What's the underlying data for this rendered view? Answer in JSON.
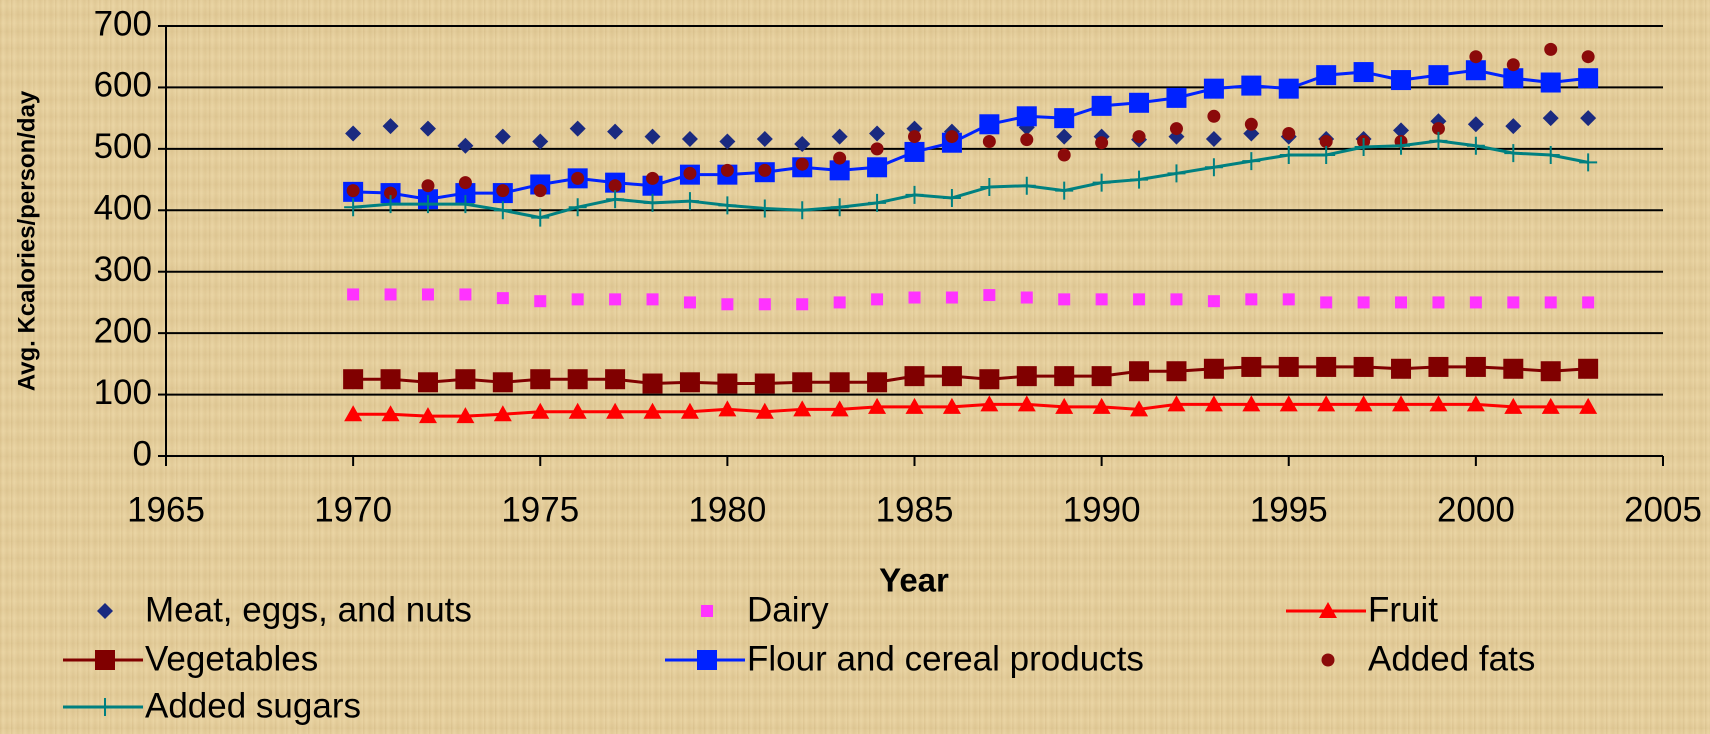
{
  "chart_data": {
    "type": "line",
    "x_label": "Year",
    "y_label": "Avg. Kcalories/person/day",
    "x": [
      1970,
      1971,
      1972,
      1973,
      1974,
      1975,
      1976,
      1977,
      1978,
      1979,
      1980,
      1981,
      1982,
      1983,
      1984,
      1985,
      1986,
      1987,
      1988,
      1989,
      1990,
      1991,
      1992,
      1993,
      1994,
      1995,
      1996,
      1997,
      1998,
      1999,
      2000,
      2001,
      2002,
      2003
    ],
    "xlim": [
      1965,
      2005
    ],
    "xticks": [
      1965,
      1970,
      1975,
      1980,
      1985,
      1990,
      1995,
      2000,
      2005
    ],
    "ylim": [
      0,
      700
    ],
    "yticks": [
      0,
      100,
      200,
      300,
      400,
      500,
      600,
      700
    ],
    "grid": true,
    "series": [
      {
        "name": "Meat, eggs, and nuts",
        "color": "#1a2a80",
        "marker": "diamond",
        "line": false,
        "values": [
          525,
          537,
          533,
          505,
          520,
          512,
          533,
          528,
          520,
          516,
          512,
          516,
          508,
          520,
          525,
          533,
          528,
          540,
          535,
          520,
          520,
          515,
          520,
          516,
          525,
          520,
          516,
          516,
          530,
          545,
          540,
          537,
          550,
          550
        ]
      },
      {
        "name": "Dairy",
        "color": "#ff33ff",
        "marker": "square-small",
        "line": false,
        "values": [
          263,
          263,
          263,
          263,
          257,
          252,
          255,
          255,
          255,
          250,
          247,
          247,
          247,
          250,
          255,
          258,
          258,
          262,
          258,
          255,
          255,
          255,
          255,
          252,
          255,
          255,
          250,
          250,
          250,
          250,
          250,
          250,
          250,
          250
        ]
      },
      {
        "name": "Fruit",
        "color": "#ff0000",
        "marker": "triangle",
        "line": true,
        "values": [
          68,
          68,
          65,
          65,
          68,
          72,
          72,
          72,
          72,
          72,
          76,
          72,
          76,
          76,
          80,
          80,
          80,
          84,
          84,
          80,
          80,
          76,
          84,
          84,
          84,
          84,
          84,
          84,
          84,
          84,
          84,
          80,
          80,
          80
        ]
      },
      {
        "name": "Vegetables",
        "color": "#800000",
        "marker": "square-large",
        "line": true,
        "values": [
          125,
          125,
          120,
          125,
          120,
          125,
          125,
          125,
          118,
          120,
          118,
          118,
          120,
          120,
          120,
          130,
          130,
          125,
          130,
          130,
          130,
          138,
          138,
          142,
          145,
          145,
          145,
          145,
          142,
          145,
          145,
          142,
          138,
          142
        ]
      },
      {
        "name": "Flour and cereal products",
        "color": "#0022ff",
        "marker": "square-large",
        "line": true,
        "values": [
          430,
          428,
          418,
          428,
          428,
          442,
          452,
          445,
          440,
          458,
          458,
          462,
          470,
          465,
          470,
          495,
          510,
          540,
          553,
          550,
          570,
          575,
          583,
          598,
          603,
          598,
          620,
          625,
          612,
          620,
          628,
          615,
          608,
          615
        ]
      },
      {
        "name": "Added fats",
        "color": "#8b0a0a",
        "marker": "circle",
        "line": false,
        "values": [
          432,
          428,
          440,
          445,
          432,
          432,
          452,
          440,
          452,
          460,
          465,
          465,
          475,
          485,
          500,
          520,
          520,
          512,
          515,
          490,
          510,
          520,
          533,
          553,
          540,
          525,
          512,
          512,
          512,
          533,
          650,
          637,
          662,
          650
        ]
      },
      {
        "name": "Added sugars",
        "color": "#008080",
        "marker": "plus",
        "line": true,
        "values": [
          405,
          410,
          410,
          410,
          400,
          388,
          405,
          418,
          412,
          415,
          408,
          403,
          400,
          405,
          412,
          425,
          420,
          438,
          440,
          432,
          445,
          450,
          460,
          470,
          480,
          490,
          490,
          503,
          505,
          513,
          505,
          493,
          490,
          478
        ]
      }
    ]
  }
}
